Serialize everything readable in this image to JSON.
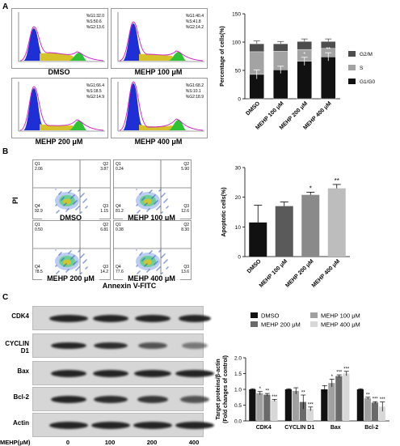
{
  "panels": {
    "A": "A",
    "B": "B",
    "C": "C"
  },
  "flow_cytometry": {
    "plots": [
      {
        "label": "DMSO",
        "g1": "%G1:32.0",
        "s": "%S:50.6",
        "g2": "%G2:13.6"
      },
      {
        "label": "MEHP 100 μM",
        "g1": "%G1:40.4",
        "s": "%S:41.8",
        "g2": "%G2:14.2"
      },
      {
        "label": "MEHP 200 μM",
        "g1": "%G1:66.4",
        "s": "%S:18.5",
        "g2": "%G2:14.9"
      },
      {
        "label": "MEHP 400 μM",
        "g1": "%G1:68.2",
        "s": "%S:10.1",
        "g2": "%G2:18.9"
      }
    ]
  },
  "apoptosis_plots": {
    "plots": [
      {
        "label": "DMSO",
        "q1": "Q1",
        "q1v": "2.06",
        "q2": "Q2",
        "q2v": "3.87",
        "q4": "Q4",
        "q4v": "92.9",
        "q3": "Q3",
        "q3v": "1.15"
      },
      {
        "label": "MEHP 100 μM",
        "q1": "Q1",
        "q1v": "0.24",
        "q2": "Q2",
        "q2v": "5.90",
        "q4": "Q4",
        "q4v": "81.2",
        "q3": "Q3",
        "q3v": "12.6"
      },
      {
        "label": "MEHP 200 μM",
        "q1": "Q1",
        "q1v": "0.50",
        "q2": "Q2",
        "q2v": "6.81",
        "q4": "Q4",
        "q4v": "78.5",
        "q3": "Q3",
        "q3v": "14.2"
      },
      {
        "label": "MEHP 400 μM",
        "q1": "Q1",
        "q1v": "0.38",
        "q2": "Q2",
        "q2v": "8.30",
        "q4": "Q4",
        "q4v": "77.6",
        "q3": "Q3",
        "q3v": "13.6"
      }
    ],
    "ylabel": "PI",
    "xlabel": "Annexin V-FITC"
  },
  "western_blot": {
    "proteins": [
      "CDK4",
      "CYCLIN D1",
      "Bax",
      "Bcl-2",
      "Actin"
    ],
    "lane_header": "MEHP(μM)",
    "lanes": [
      "0",
      "100",
      "200",
      "400"
    ]
  },
  "chart_data": [
    {
      "type": "bar",
      "stacked": true,
      "categories": [
        "DMSO",
        "MEHP 100 μM",
        "MEHP 200 μM",
        "MEHP 400 μM"
      ],
      "series": [
        {
          "name": "G1/G0",
          "values": [
            43,
            51,
            66,
            74
          ],
          "color": "#111111"
        },
        {
          "name": "S",
          "values": [
            40,
            33,
            21,
            15
          ],
          "color": "#a3a3a3"
        },
        {
          "name": "G2/M",
          "values": [
            14,
            13,
            14,
            12
          ],
          "color": "#4d4d4d"
        }
      ],
      "errors": [
        10,
        8,
        9,
        9
      ],
      "annotations": [
        "",
        "",
        "*",
        "**"
      ],
      "ylabel": "Percentage of cells(%)",
      "ylim": [
        0,
        150
      ],
      "yticks": [
        0,
        50,
        100,
        150
      ],
      "legend_position": "right"
    },
    {
      "type": "bar",
      "categories": [
        "DMSO",
        "MEHP 100 μM",
        "MEHP 200 μM",
        "MEHP 400 μM"
      ],
      "values": [
        11.5,
        17.0,
        20.8,
        23.0
      ],
      "errors": [
        5.8,
        1.4,
        0.9,
        1.3
      ],
      "colors": [
        "#111111",
        "#5a5a5a",
        "#8a8a8a",
        "#bdbdbd"
      ],
      "annotations": [
        "",
        "",
        "*",
        "**"
      ],
      "ylabel": "Apoptotic cells(%)",
      "ylim": [
        0,
        30
      ],
      "yticks": [
        0,
        10,
        20,
        30
      ]
    },
    {
      "type": "bar",
      "categories": [
        "CDK4",
        "CYCLIN D1",
        "Bax",
        "Bcl-2"
      ],
      "series": [
        {
          "name": "DMSO",
          "values": [
            1.0,
            1.0,
            1.0,
            1.0
          ],
          "errors": [
            0.02,
            0.02,
            0.12,
            0.02
          ],
          "annotations": [
            "",
            "",
            "",
            ""
          ],
          "color": "#111111"
        },
        {
          "name": "MEHP 100 μM",
          "values": [
            0.88,
            0.95,
            1.2,
            0.72
          ],
          "errors": [
            0.05,
            0.1,
            0.12,
            0.03
          ],
          "annotations": [
            "*",
            "",
            "*",
            "**"
          ],
          "color": "#a0a0a0"
        },
        {
          "name": "MEHP 200 μM",
          "values": [
            0.83,
            0.6,
            1.42,
            0.58
          ],
          "errors": [
            0.04,
            0.22,
            0.04,
            0.03
          ],
          "annotations": [
            "**",
            "**",
            "***",
            "***"
          ],
          "color": "#6a6a6a"
        },
        {
          "name": "MEHP 400 μM",
          "values": [
            0.65,
            0.38,
            1.5,
            0.45
          ],
          "errors": [
            0.03,
            0.06,
            0.07,
            0.15
          ],
          "annotations": [
            "***",
            "***",
            "***",
            "***"
          ],
          "color": "#d8d8d8"
        }
      ],
      "ylabel": "Target proteins/β-actin (Fold changes of control)",
      "ylabel_lines": [
        "Target proteins/β-actin",
        "(Fold changes of control)"
      ],
      "ylim": [
        0,
        2.0
      ],
      "yticks": [
        0.0,
        0.5,
        1.0,
        1.5,
        2.0
      ],
      "ytick_labels": [
        "0.0",
        "0.5",
        "1.0",
        "1.5",
        "2.0"
      ],
      "legend_position": "top"
    }
  ]
}
